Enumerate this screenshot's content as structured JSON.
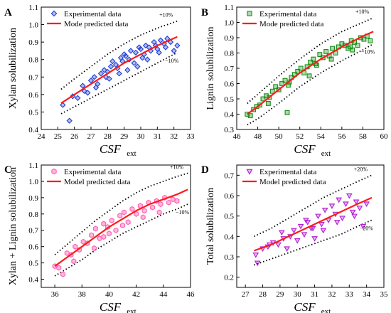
{
  "chart_data": [
    {
      "panel": "A",
      "type": "scatter",
      "xlabel": "CSF",
      "xlabel_sub": "ext",
      "ylabel": "Xylan solubilization",
      "xlim": [
        24,
        33
      ],
      "ylim": [
        0.4,
        1.1
      ],
      "xticks": [
        24,
        25,
        26,
        27,
        28,
        29,
        30,
        31,
        32,
        33
      ],
      "yticks": [
        0.4,
        0.5,
        0.6,
        0.7,
        0.8,
        0.9,
        1.0,
        1.1
      ],
      "marker": "diamond",
      "marker_color": "#1f3fd6",
      "legend": [
        "Experimental data",
        "Mode predicted data"
      ],
      "band_upper_label": "+10%",
      "band_lower_label": "−10%",
      "fit": {
        "x": [
          25.2,
          26,
          27,
          28,
          29,
          30,
          31,
          32.2
        ],
        "y": [
          0.55,
          0.6,
          0.66,
          0.72,
          0.78,
          0.83,
          0.88,
          0.93
        ]
      },
      "band_upper": {
        "x": [
          25.2,
          26,
          27,
          28,
          29,
          30,
          31,
          32.2
        ],
        "y": [
          0.63,
          0.69,
          0.76,
          0.83,
          0.89,
          0.94,
          0.98,
          1.02
        ]
      },
      "band_lower": {
        "x": [
          25.2,
          26,
          27,
          28,
          29,
          30,
          31,
          32.2
        ],
        "y": [
          0.49,
          0.53,
          0.58,
          0.63,
          0.68,
          0.73,
          0.78,
          0.84
        ]
      },
      "points": {
        "x": [
          25.3,
          25.7,
          25.9,
          26.2,
          26.5,
          26.8,
          27.0,
          27.2,
          27.4,
          27.6,
          27.8,
          27.9,
          28.0,
          28.2,
          28.3,
          28.5,
          28.6,
          28.8,
          28.9,
          29.0,
          29.1,
          29.3,
          29.4,
          29.6,
          29.7,
          29.9,
          30.0,
          30.2,
          30.3,
          30.5,
          30.6,
          30.8,
          30.9,
          31.0,
          31.2,
          31.4,
          31.6,
          31.8,
          32.0,
          32.2,
          27.3,
          28.1,
          29.2,
          30.1,
          31.1,
          26.6,
          28.7,
          30.4,
          31.5,
          29.8
        ],
        "y": [
          0.54,
          0.45,
          0.59,
          0.58,
          0.65,
          0.61,
          0.68,
          0.7,
          0.66,
          0.72,
          0.74,
          0.7,
          0.73,
          0.76,
          0.79,
          0.77,
          0.75,
          0.81,
          0.79,
          0.83,
          0.82,
          0.8,
          0.85,
          0.78,
          0.84,
          0.87,
          0.86,
          0.83,
          0.88,
          0.87,
          0.85,
          0.9,
          0.88,
          0.86,
          0.91,
          0.89,
          0.92,
          0.9,
          0.85,
          0.88,
          0.64,
          0.69,
          0.74,
          0.81,
          0.84,
          0.62,
          0.72,
          0.8,
          0.87,
          0.76
        ]
      }
    },
    {
      "panel": "B",
      "type": "scatter",
      "xlabel": "CSF",
      "xlabel_sub": "ext",
      "ylabel": "Lignin solubilization",
      "xlim": [
        46,
        60
      ],
      "ylim": [
        0.3,
        1.1
      ],
      "xticks": [
        46,
        48,
        50,
        52,
        54,
        56,
        58,
        60
      ],
      "yticks": [
        0.3,
        0.4,
        0.5,
        0.6,
        0.7,
        0.8,
        0.9,
        1.0,
        1.1
      ],
      "marker": "square",
      "marker_color": "#169116",
      "legend": [
        "Experimental data",
        "Mode predicted data"
      ],
      "band_upper_label": "+10%",
      "band_lower_label": "−10%",
      "fit": {
        "x": [
          47,
          48,
          50,
          52,
          54,
          56,
          58,
          59
        ],
        "y": [
          0.4,
          0.45,
          0.56,
          0.67,
          0.76,
          0.84,
          0.91,
          0.94
        ]
      },
      "band_upper": {
        "x": [
          47,
          48,
          50,
          52,
          54,
          56,
          58,
          59
        ],
        "y": [
          0.47,
          0.53,
          0.65,
          0.76,
          0.86,
          0.94,
          1.0,
          1.03
        ]
      },
      "band_lower": {
        "x": [
          47,
          48,
          50,
          52,
          54,
          56,
          58,
          59
        ],
        "y": [
          0.33,
          0.37,
          0.47,
          0.58,
          0.67,
          0.75,
          0.82,
          0.86
        ]
      },
      "points": {
        "x": [
          47.0,
          47.3,
          47.6,
          47.9,
          48.2,
          48.5,
          48.8,
          49.1,
          49.4,
          49.7,
          50.0,
          50.3,
          50.6,
          50.9,
          51.2,
          51.5,
          51.8,
          52.1,
          52.4,
          52.7,
          53.0,
          53.3,
          53.6,
          53.9,
          54.2,
          54.5,
          54.8,
          55.1,
          55.4,
          55.7,
          56.0,
          56.3,
          56.6,
          56.9,
          57.2,
          57.5,
          57.8,
          58.1,
          58.4,
          58.7,
          50.8,
          52.9,
          55.0,
          57.0,
          49.0,
          53.5,
          56.8,
          51.0
        ],
        "y": [
          0.4,
          0.39,
          0.43,
          0.45,
          0.46,
          0.5,
          0.52,
          0.51,
          0.55,
          0.58,
          0.56,
          0.6,
          0.62,
          0.59,
          0.64,
          0.66,
          0.68,
          0.7,
          0.67,
          0.71,
          0.74,
          0.76,
          0.72,
          0.79,
          0.77,
          0.81,
          0.78,
          0.83,
          0.8,
          0.84,
          0.86,
          0.85,
          0.83,
          0.88,
          0.87,
          0.85,
          0.9,
          0.89,
          0.91,
          0.88,
          0.41,
          0.65,
          0.76,
          0.82,
          0.47,
          0.73,
          0.84,
          0.61
        ]
      }
    },
    {
      "panel": "C",
      "type": "scatter",
      "xlabel": "CSF",
      "xlabel_sub": "ext",
      "ylabel": "Xylan + Lignin solubilization",
      "xlim": [
        35,
        46
      ],
      "ylim": [
        0.35,
        1.1
      ],
      "xticks": [
        36,
        38,
        40,
        42,
        44,
        46
      ],
      "yticks": [
        0.4,
        0.5,
        0.6,
        0.7,
        0.8,
        0.9,
        1.0,
        1.1
      ],
      "marker": "hexagon",
      "marker_color": "#ff5fb4",
      "legend": [
        "Experimental data",
        "Model predicted data"
      ],
      "band_upper_label": "+10%",
      "band_lower_label": "−10%",
      "fit": {
        "x": [
          36,
          37,
          38,
          39,
          40,
          41,
          42,
          43,
          44,
          45,
          45.8
        ],
        "y": [
          0.48,
          0.54,
          0.6,
          0.66,
          0.72,
          0.77,
          0.82,
          0.86,
          0.89,
          0.92,
          0.95
        ]
      },
      "band_upper": {
        "x": [
          36,
          37,
          38,
          39,
          40,
          41,
          42,
          43,
          44,
          45,
          45.8
        ],
        "y": [
          0.55,
          0.62,
          0.69,
          0.76,
          0.82,
          0.88,
          0.93,
          0.97,
          1.0,
          1.03,
          1.05
        ]
      },
      "band_lower": {
        "x": [
          36,
          37,
          38,
          39,
          40,
          41,
          42,
          43,
          44,
          45,
          45.8
        ],
        "y": [
          0.42,
          0.47,
          0.52,
          0.58,
          0.63,
          0.68,
          0.72,
          0.76,
          0.8,
          0.83,
          0.86
        ]
      },
      "points": {
        "x": [
          36.0,
          36.3,
          36.6,
          36.9,
          37.2,
          37.5,
          37.8,
          38.1,
          38.4,
          38.7,
          39.0,
          39.3,
          39.6,
          39.9,
          40.2,
          40.5,
          40.8,
          41.1,
          41.4,
          41.7,
          42.0,
          42.3,
          42.6,
          42.9,
          43.2,
          43.5,
          43.8,
          44.1,
          44.4,
          44.7,
          45.0,
          38.9,
          40.0,
          41.0,
          42.5,
          43.7,
          37.4,
          39.6
        ],
        "y": [
          0.48,
          0.47,
          0.43,
          0.56,
          0.55,
          0.6,
          0.58,
          0.63,
          0.62,
          0.67,
          0.71,
          0.65,
          0.74,
          0.72,
          0.76,
          0.7,
          0.79,
          0.81,
          0.75,
          0.83,
          0.8,
          0.85,
          0.82,
          0.87,
          0.84,
          0.88,
          0.86,
          0.9,
          0.87,
          0.89,
          0.88,
          0.59,
          0.68,
          0.73,
          0.78,
          0.81,
          0.51,
          0.66
        ]
      }
    },
    {
      "panel": "D",
      "type": "scatter",
      "xlabel": "CSF",
      "xlabel_sub": "ext",
      "ylabel": "Total solubilization",
      "xlim": [
        26.5,
        35
      ],
      "ylim": [
        0.15,
        0.75
      ],
      "xticks": [
        27,
        28,
        29,
        30,
        31,
        32,
        33,
        34,
        35
      ],
      "yticks": [
        0.2,
        0.3,
        0.4,
        0.5,
        0.6,
        0.7
      ],
      "marker": "triangle-down",
      "marker_color": "#b21fd6",
      "legend": [
        "Experimental data",
        "Model predicted data"
      ],
      "band_upper_label": "+20%",
      "band_lower_label": "−20%",
      "fit": {
        "x": [
          27.5,
          28.5,
          29.5,
          30.5,
          31.5,
          32.5,
          33.5,
          34.3
        ],
        "y": [
          0.33,
          0.36,
          0.4,
          0.44,
          0.48,
          0.52,
          0.56,
          0.59
        ]
      },
      "band_upper": {
        "x": [
          27.5,
          28.5,
          29.5,
          30.5,
          31.5,
          32.5,
          33.5,
          34.3
        ],
        "y": [
          0.4,
          0.44,
          0.49,
          0.54,
          0.59,
          0.63,
          0.67,
          0.7
        ]
      },
      "band_lower": {
        "x": [
          27.5,
          28.5,
          29.5,
          30.5,
          31.5,
          32.5,
          33.5,
          34.3
        ],
        "y": [
          0.26,
          0.29,
          0.32,
          0.35,
          0.38,
          0.41,
          0.45,
          0.48
        ]
      },
      "points": {
        "x": [
          27.6,
          27.7,
          28.0,
          28.3,
          28.6,
          28.9,
          29.2,
          29.4,
          29.6,
          29.8,
          30.0,
          30.2,
          30.4,
          30.6,
          30.8,
          31.0,
          31.2,
          31.4,
          31.6,
          31.8,
          32.0,
          32.2,
          32.4,
          32.6,
          32.8,
          33.0,
          33.2,
          33.4,
          33.6,
          33.8,
          34.0,
          29.1,
          30.5,
          31.5,
          32.3,
          33.3,
          28.4,
          30.9
        ],
        "y": [
          0.31,
          0.27,
          0.34,
          0.35,
          0.37,
          0.36,
          0.39,
          0.34,
          0.4,
          0.43,
          0.38,
          0.45,
          0.41,
          0.47,
          0.44,
          0.39,
          0.5,
          0.46,
          0.53,
          0.48,
          0.55,
          0.51,
          0.58,
          0.49,
          0.56,
          0.6,
          0.52,
          0.57,
          0.54,
          0.45,
          0.56,
          0.42,
          0.48,
          0.43,
          0.47,
          0.5,
          0.36,
          0.44
        ]
      }
    }
  ],
  "panels": [
    {
      "letter": "A"
    },
    {
      "letter": "B"
    },
    {
      "letter": "C"
    },
    {
      "letter": "D"
    }
  ]
}
